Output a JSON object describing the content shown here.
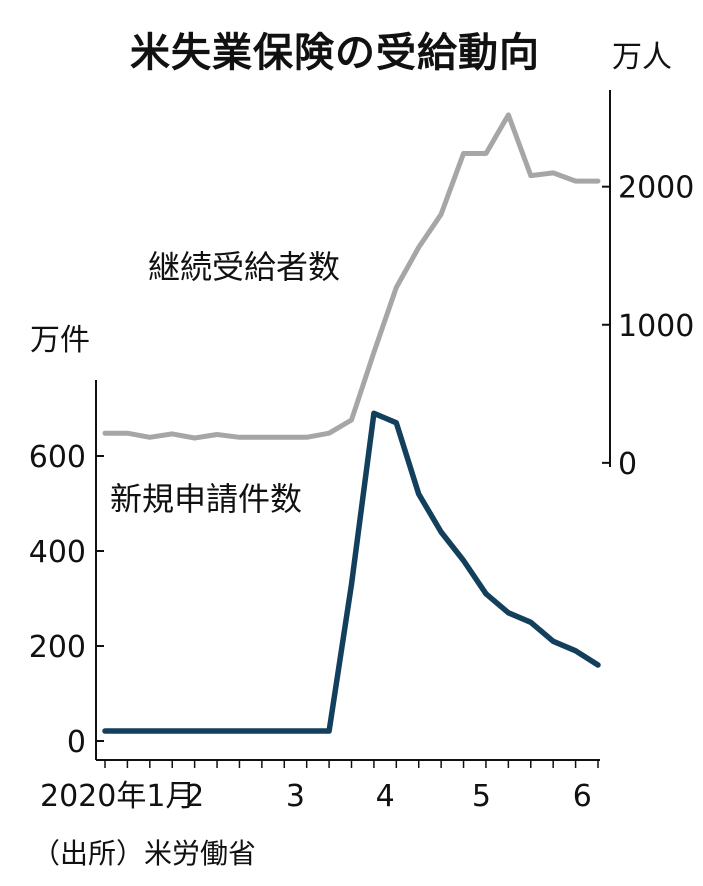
{
  "title": "米失業保険の受給動向",
  "source": "（出所）米労働省",
  "chart_data": {
    "type": "line",
    "left_axis": {
      "unit": "万件",
      "ticks": [
        0,
        200,
        400,
        600
      ],
      "range": [
        -40,
        760
      ]
    },
    "right_axis": {
      "unit": "万人",
      "ticks": [
        0,
        1000,
        2000
      ],
      "range": [
        -30,
        2700
      ]
    },
    "x_ticks": [
      {
        "label": "2020年1月",
        "index": 0
      },
      {
        "label": "2",
        "index": 4
      },
      {
        "label": "3",
        "index": 8.5
      },
      {
        "label": "4",
        "index": 12.5
      },
      {
        "label": "5",
        "index": 16.8
      },
      {
        "label": "6",
        "index": 21.3
      }
    ],
    "x_range": [
      0,
      22
    ]
  },
  "series": [
    {
      "name": "継続受給者数",
      "axis": "right",
      "color": "#a6a6a6",
      "x": [
        0,
        1,
        2,
        3,
        4,
        5,
        6,
        7,
        8,
        9,
        10,
        11,
        12,
        13,
        14,
        15,
        16,
        17,
        18,
        19,
        20,
        21,
        22
      ],
      "values": [
        215,
        215,
        185,
        210,
        180,
        205,
        185,
        185,
        185,
        185,
        215,
        310,
        800,
        1270,
        1560,
        1800,
        2240,
        2240,
        2520,
        2080,
        2100,
        2040,
        2040
      ]
    },
    {
      "name": "新規申請件数",
      "axis": "left",
      "color": "#123f5c",
      "x": [
        0,
        1,
        2,
        3,
        4,
        5,
        6,
        7,
        8,
        9,
        10,
        11,
        12,
        13,
        14,
        15,
        16,
        17,
        18,
        19,
        20,
        21,
        22
      ],
      "values": [
        21,
        21,
        21,
        21,
        21,
        21,
        21,
        21,
        21,
        21,
        21,
        330,
        690,
        670,
        520,
        440,
        380,
        310,
        270,
        250,
        210,
        190,
        160
      ]
    }
  ]
}
